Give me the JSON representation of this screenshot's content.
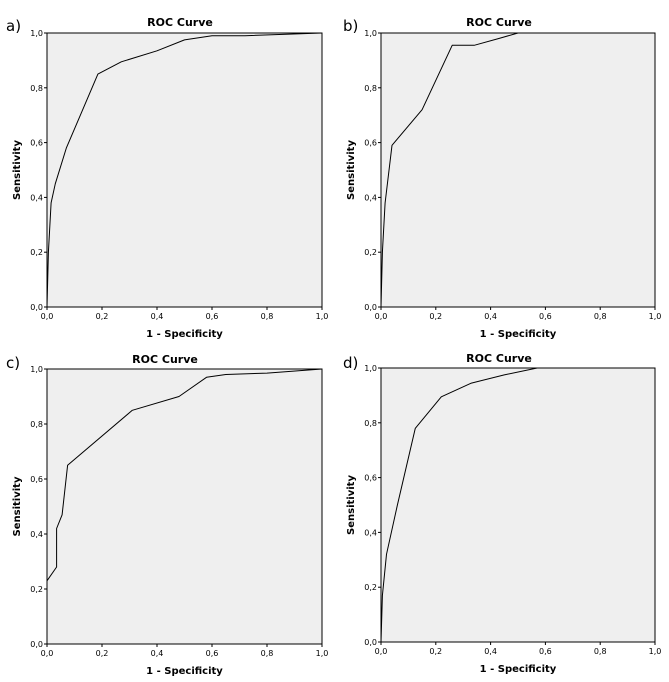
{
  "chart_data": [
    {
      "panel": "a)",
      "type": "line",
      "title": "ROC Curve",
      "xlabel": "1 - Specificity",
      "ylabel": "Sensitivity",
      "xlim": [
        0,
        1
      ],
      "ylim": [
        0,
        1
      ],
      "xticks": [
        "0,0",
        "0,2",
        "0,4",
        "0,6",
        "0,8",
        "1,0"
      ],
      "yticks": [
        "0,0",
        "0,2",
        "0,4",
        "0,6",
        "0,8",
        "1,0"
      ],
      "grid": false,
      "series": [
        {
          "x": [
            0,
            0.005,
            0.015,
            0.03,
            0.07,
            0.185,
            0.27,
            0.4,
            0.5,
            0.6,
            0.72,
            1.0
          ],
          "y": [
            0,
            0.2,
            0.38,
            0.45,
            0.58,
            0.85,
            0.895,
            0.935,
            0.975,
            0.99,
            0.99,
            1.0
          ]
        }
      ]
    },
    {
      "panel": "b)",
      "type": "line",
      "title": "ROC Curve",
      "xlabel": "1 - Specificity",
      "ylabel": "Sensitivity",
      "xlim": [
        0,
        1
      ],
      "ylim": [
        0,
        1
      ],
      "xticks": [
        "0,0",
        "0,2",
        "0,4",
        "0,6",
        "0,8",
        "1,0"
      ],
      "yticks": [
        "0,0",
        "0,2",
        "0,4",
        "0,6",
        "0,8",
        "1,0"
      ],
      "grid": false,
      "series": [
        {
          "x": [
            0,
            0.005,
            0.015,
            0.04,
            0.15,
            0.26,
            0.34,
            0.43,
            0.5,
            1.0
          ],
          "y": [
            0,
            0.2,
            0.38,
            0.59,
            0.72,
            0.955,
            0.955,
            0.98,
            1.0,
            1.0
          ]
        }
      ]
    },
    {
      "panel": "c)",
      "type": "line",
      "title": "ROC Curve",
      "xlabel": "1 - Specificity",
      "ylabel": "Sensitivity",
      "xlim": [
        0,
        1
      ],
      "ylim": [
        0,
        1
      ],
      "xticks": [
        "0,0",
        "0,2",
        "0,4",
        "0,6",
        "0,8",
        "1,0"
      ],
      "yticks": [
        "0,0",
        "0,2",
        "0,4",
        "0,6",
        "0,8",
        "1,0"
      ],
      "grid": false,
      "series": [
        {
          "x": [
            0,
            0.035,
            0.035,
            0.055,
            0.075,
            0.31,
            0.48,
            0.58,
            0.65,
            0.8,
            1.0
          ],
          "y": [
            0.23,
            0.28,
            0.42,
            0.47,
            0.65,
            0.85,
            0.9,
            0.97,
            0.98,
            0.985,
            1.0
          ]
        }
      ]
    },
    {
      "panel": "d)",
      "type": "line",
      "title": "ROC Curve",
      "xlabel": "1 - Specificity",
      "ylabel": "Sensitivity",
      "xlim": [
        0,
        1
      ],
      "ylim": [
        0,
        1
      ],
      "xticks": [
        "0,0",
        "0,2",
        "0,4",
        "0,6",
        "0,8",
        "1,0"
      ],
      "yticks": [
        "0,0",
        "0,2",
        "0,4",
        "0,6",
        "0,8",
        "1,0"
      ],
      "grid": false,
      "series": [
        {
          "x": [
            0,
            0.005,
            0.02,
            0.06,
            0.125,
            0.22,
            0.33,
            0.45,
            0.57,
            1.0
          ],
          "y": [
            0,
            0.17,
            0.32,
            0.5,
            0.78,
            0.895,
            0.945,
            0.975,
            1.0,
            1.0
          ]
        }
      ]
    }
  ]
}
